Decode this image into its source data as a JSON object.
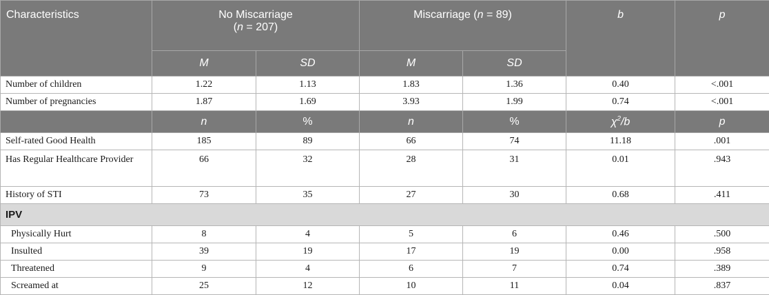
{
  "header": {
    "characteristics": "Characteristics",
    "no_misc_line1": "No Miscarriage",
    "no_misc_n_prefix": "(",
    "no_misc_n_var": "n",
    "no_misc_n_value": " = 207)",
    "misc_label": "Miscarriage (",
    "misc_n_var": "n",
    "misc_n_value": " = 89)",
    "b": "b",
    "p": "p"
  },
  "subheader_1": [
    "M",
    "SD",
    "M",
    "SD"
  ],
  "continuous_rows": [
    {
      "label": "Number of children",
      "values": [
        "1.22",
        "1.13",
        "1.83",
        "1.36",
        "0.40",
        "<.001"
      ]
    },
    {
      "label": "Number of pregnancies",
      "values": [
        "1.87",
        "1.69",
        "3.93",
        "1.99",
        "0.74",
        "<.001"
      ]
    }
  ],
  "subheader_2": {
    "cols": [
      "n",
      "%",
      "n",
      "%"
    ],
    "stat_chi": "χ",
    "stat_sup": "2",
    "stat_rest": "/b",
    "p": "p"
  },
  "categorical_rows": [
    {
      "label": "Self-rated Good Health",
      "values": [
        "185",
        "89",
        "66",
        "74",
        "11.18",
        ".001"
      ]
    },
    {
      "label": "Has Regular Healthcare Provider",
      "values": [
        "66",
        "32",
        "28",
        "31",
        "0.01",
        ".943"
      ]
    },
    {
      "label": "History of STI",
      "values": [
        "73",
        "35",
        "27",
        "30",
        "0.68",
        ".411"
      ]
    }
  ],
  "section": {
    "title": "IPV"
  },
  "ipv_rows": [
    {
      "label": "Physically Hurt",
      "values": [
        "8",
        "4",
        "5",
        "6",
        "0.46",
        ".500"
      ]
    },
    {
      "label": "Insulted",
      "values": [
        "39",
        "19",
        "17",
        "19",
        "0.00",
        ".958"
      ]
    },
    {
      "label": "Threatened",
      "values": [
        "9",
        "4",
        "6",
        "7",
        "0.74",
        ".389"
      ]
    },
    {
      "label": "Screamed at",
      "values": [
        "25",
        "12",
        "10",
        "11",
        "0.04",
        ".837"
      ]
    }
  ]
}
